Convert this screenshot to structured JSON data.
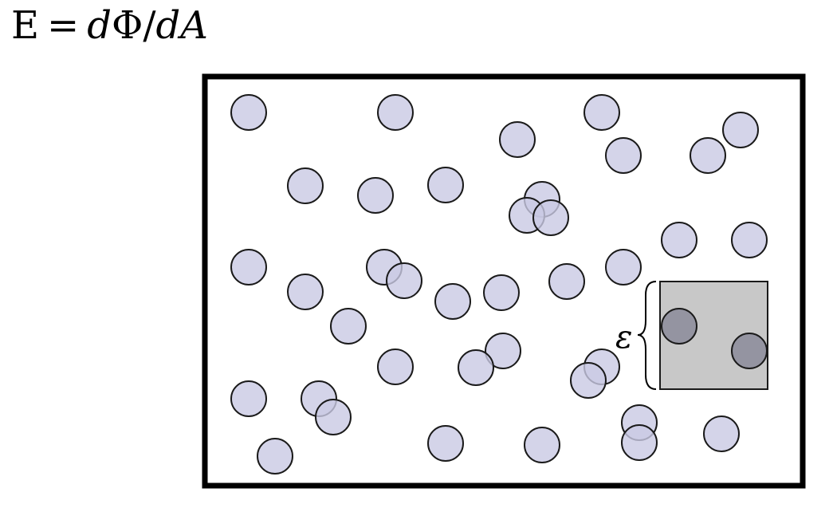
{
  "formula": {
    "lhs": "E",
    "equals": "=",
    "numerator_d": "d",
    "numerator_var": "Φ",
    "slash": "/",
    "denominator_d": "d",
    "denominator_var": "A"
  },
  "sample_box": {
    "label": "ε"
  },
  "colors": {
    "frame": "#000000",
    "particle_fill": "#c9c9e4",
    "particle_stroke": "#1a1a1a",
    "sample_fill": "#c8c8c8",
    "sample_particle_fill": "#8e8e9c"
  }
}
